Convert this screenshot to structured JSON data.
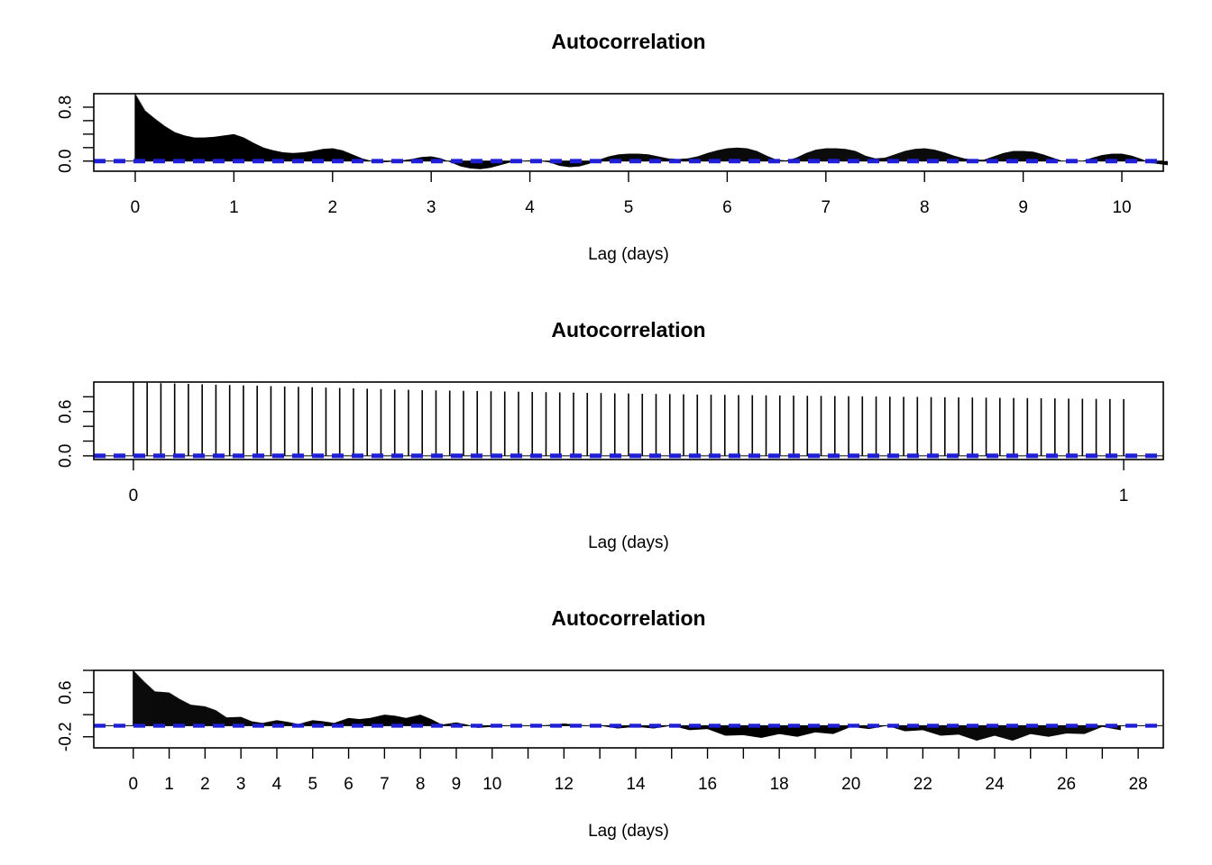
{
  "chart_data": [
    {
      "type": "bar",
      "title": "Autocorrelation",
      "xlabel": "Lag (days)",
      "ylabel": "",
      "xlim": [
        -0.42,
        10.42
      ],
      "ylim": [
        -0.15,
        1.0
      ],
      "x_ticks": [
        0,
        1,
        2,
        3,
        4,
        5,
        6,
        7,
        8,
        9,
        10
      ],
      "y_ticks": [
        0.0,
        0.8
      ],
      "y_minor_ticks": [
        0.2,
        0.4,
        0.6
      ],
      "max_lag": 10.46,
      "confidence_band": 0.015,
      "envelope": [
        [
          0,
          1.0
        ],
        [
          0.02,
          0.95
        ],
        [
          0.1,
          0.75
        ],
        [
          0.2,
          0.63
        ],
        [
          0.3,
          0.52
        ],
        [
          0.4,
          0.43
        ],
        [
          0.5,
          0.38
        ],
        [
          0.6,
          0.35
        ],
        [
          0.7,
          0.35
        ],
        [
          0.8,
          0.36
        ],
        [
          0.9,
          0.38
        ],
        [
          1.0,
          0.4
        ],
        [
          1.1,
          0.35
        ],
        [
          1.2,
          0.27
        ],
        [
          1.3,
          0.2
        ],
        [
          1.4,
          0.16
        ],
        [
          1.5,
          0.13
        ],
        [
          1.6,
          0.12
        ],
        [
          1.7,
          0.13
        ],
        [
          1.8,
          0.15
        ],
        [
          1.9,
          0.18
        ],
        [
          2.0,
          0.19
        ],
        [
          2.1,
          0.16
        ],
        [
          2.2,
          0.1
        ],
        [
          2.3,
          0.04
        ],
        [
          2.4,
          0.0
        ],
        [
          2.5,
          -0.02
        ],
        [
          2.6,
          -0.01
        ],
        [
          2.7,
          0.01
        ],
        [
          2.8,
          0.03
        ],
        [
          2.9,
          0.06
        ],
        [
          3.0,
          0.07
        ],
        [
          3.1,
          0.04
        ],
        [
          3.2,
          -0.02
        ],
        [
          3.3,
          -0.08
        ],
        [
          3.4,
          -0.11
        ],
        [
          3.5,
          -0.12
        ],
        [
          3.6,
          -0.1
        ],
        [
          3.7,
          -0.06
        ],
        [
          3.8,
          -0.02
        ],
        [
          3.9,
          0.0
        ],
        [
          4.0,
          0.01
        ],
        [
          4.1,
          0.0
        ],
        [
          4.2,
          -0.02
        ],
        [
          4.3,
          -0.07
        ],
        [
          4.4,
          -0.09
        ],
        [
          4.5,
          -0.08
        ],
        [
          4.6,
          -0.04
        ],
        [
          4.7,
          0.02
        ],
        [
          4.8,
          0.07
        ],
        [
          4.9,
          0.1
        ],
        [
          5.0,
          0.11
        ],
        [
          5.1,
          0.11
        ],
        [
          5.2,
          0.1
        ],
        [
          5.3,
          0.07
        ],
        [
          5.4,
          0.04
        ],
        [
          5.5,
          0.03
        ],
        [
          5.6,
          0.04
        ],
        [
          5.7,
          0.07
        ],
        [
          5.8,
          0.12
        ],
        [
          5.9,
          0.16
        ],
        [
          6.0,
          0.19
        ],
        [
          6.1,
          0.2
        ],
        [
          6.2,
          0.19
        ],
        [
          6.3,
          0.15
        ],
        [
          6.4,
          0.08
        ],
        [
          6.5,
          0.02
        ],
        [
          6.6,
          0.01
        ],
        [
          6.7,
          0.05
        ],
        [
          6.8,
          0.12
        ],
        [
          6.9,
          0.17
        ],
        [
          7.0,
          0.19
        ],
        [
          7.1,
          0.19
        ],
        [
          7.2,
          0.18
        ],
        [
          7.3,
          0.15
        ],
        [
          7.4,
          0.08
        ],
        [
          7.5,
          0.04
        ],
        [
          7.6,
          0.05
        ],
        [
          7.7,
          0.1
        ],
        [
          7.8,
          0.15
        ],
        [
          7.9,
          0.18
        ],
        [
          8.0,
          0.19
        ],
        [
          8.1,
          0.17
        ],
        [
          8.2,
          0.13
        ],
        [
          8.3,
          0.08
        ],
        [
          8.4,
          0.04
        ],
        [
          8.5,
          0.02
        ],
        [
          8.6,
          0.02
        ],
        [
          8.7,
          0.07
        ],
        [
          8.8,
          0.12
        ],
        [
          8.9,
          0.15
        ],
        [
          9.0,
          0.15
        ],
        [
          9.1,
          0.14
        ],
        [
          9.2,
          0.1
        ],
        [
          9.3,
          0.05
        ],
        [
          9.4,
          0.0
        ],
        [
          9.5,
          -0.01
        ],
        [
          9.6,
          0.0
        ],
        [
          9.7,
          0.05
        ],
        [
          9.8,
          0.09
        ],
        [
          9.9,
          0.11
        ],
        [
          10.0,
          0.11
        ],
        [
          10.1,
          0.08
        ],
        [
          10.2,
          0.03
        ],
        [
          10.3,
          -0.03
        ],
        [
          10.46,
          -0.06
        ]
      ]
    },
    {
      "type": "bar",
      "title": "Autocorrelation",
      "xlabel": "Lag (days)",
      "ylabel": "",
      "xlim": [
        -0.04,
        1.04
      ],
      "ylim": [
        -0.05,
        1.0
      ],
      "x_ticks": [
        0,
        1
      ],
      "y_ticks": [
        0.0,
        0.6
      ],
      "y_minor_ticks": [
        0.2,
        0.4,
        0.8
      ],
      "lag_step": 0.013888889,
      "acf": [
        1.0,
        0.99,
        0.985,
        0.98,
        0.975,
        0.97,
        0.965,
        0.96,
        0.955,
        0.95,
        0.945,
        0.94,
        0.935,
        0.93,
        0.925,
        0.92,
        0.915,
        0.91,
        0.905,
        0.9,
        0.895,
        0.89,
        0.887,
        0.884,
        0.881,
        0.878,
        0.875,
        0.872,
        0.869,
        0.866,
        0.863,
        0.86,
        0.857,
        0.854,
        0.851,
        0.848,
        0.845,
        0.842,
        0.839,
        0.836,
        0.833,
        0.83,
        0.828,
        0.826,
        0.824,
        0.822,
        0.82,
        0.818,
        0.816,
        0.814,
        0.812,
        0.81,
        0.808,
        0.806,
        0.804,
        0.802,
        0.8,
        0.798,
        0.796,
        0.794,
        0.792,
        0.79,
        0.788,
        0.786,
        0.784,
        0.782,
        0.78,
        0.778,
        0.776,
        0.774,
        0.772,
        0.77,
        0.768
      ],
      "confidence_band": 0.015
    },
    {
      "type": "bar",
      "title": "Autocorrelation",
      "xlabel": "Lag (days)",
      "ylabel": "",
      "xlim": [
        -1.1,
        28.7
      ],
      "ylim": [
        -0.4,
        1.0
      ],
      "x_ticks": [
        0,
        1,
        2,
        3,
        4,
        5,
        6,
        7,
        8,
        9,
        10,
        12,
        14,
        16,
        18,
        20,
        22,
        24,
        26,
        28
      ],
      "x_minor_ticks": [
        11,
        13,
        15,
        17,
        19,
        21,
        23,
        25,
        27
      ],
      "y_ticks": [
        -0.2,
        0.6
      ],
      "y_minor_ticks": [
        0.2,
        1.0
      ],
      "max_lag": 27.5,
      "confidence_band": 0.015,
      "envelope": [
        [
          0,
          1.0
        ],
        [
          0.3,
          0.8
        ],
        [
          0.6,
          0.62
        ],
        [
          1.0,
          0.6
        ],
        [
          1.3,
          0.48
        ],
        [
          1.6,
          0.38
        ],
        [
          2.0,
          0.35
        ],
        [
          2.3,
          0.28
        ],
        [
          2.6,
          0.15
        ],
        [
          3.0,
          0.16
        ],
        [
          3.3,
          0.08
        ],
        [
          3.6,
          0.05
        ],
        [
          4.0,
          0.1
        ],
        [
          4.3,
          0.07
        ],
        [
          4.6,
          0.03
        ],
        [
          5.0,
          0.1
        ],
        [
          5.3,
          0.08
        ],
        [
          5.6,
          0.05
        ],
        [
          6.0,
          0.14
        ],
        [
          6.3,
          0.12
        ],
        [
          6.6,
          0.14
        ],
        [
          7.0,
          0.2
        ],
        [
          7.3,
          0.18
        ],
        [
          7.6,
          0.14
        ],
        [
          8.0,
          0.2
        ],
        [
          8.3,
          0.12
        ],
        [
          8.6,
          0.02
        ],
        [
          9.0,
          0.06
        ],
        [
          9.3,
          0.02
        ],
        [
          9.6,
          -0.04
        ],
        [
          10.0,
          -0.02
        ],
        [
          10.5,
          0.0
        ],
        [
          11.0,
          0.0
        ],
        [
          11.5,
          0.01
        ],
        [
          12.0,
          0.04
        ],
        [
          12.5,
          0.01
        ],
        [
          13.0,
          0.0
        ],
        [
          13.5,
          -0.05
        ],
        [
          14.0,
          -0.02
        ],
        [
          14.5,
          -0.05
        ],
        [
          15.0,
          0.0
        ],
        [
          15.5,
          -0.08
        ],
        [
          16.0,
          -0.06
        ],
        [
          16.5,
          -0.18
        ],
        [
          17.0,
          -0.17
        ],
        [
          17.5,
          -0.22
        ],
        [
          18.0,
          -0.15
        ],
        [
          18.5,
          -0.2
        ],
        [
          19.0,
          -0.12
        ],
        [
          19.5,
          -0.15
        ],
        [
          20.0,
          -0.02
        ],
        [
          20.5,
          -0.06
        ],
        [
          21.0,
          0.0
        ],
        [
          21.5,
          -0.1
        ],
        [
          22.0,
          -0.08
        ],
        [
          22.5,
          -0.18
        ],
        [
          23.0,
          -0.16
        ],
        [
          23.5,
          -0.27
        ],
        [
          24.0,
          -0.18
        ],
        [
          24.5,
          -0.27
        ],
        [
          25.0,
          -0.15
        ],
        [
          25.5,
          -0.2
        ],
        [
          26.0,
          -0.14
        ],
        [
          26.5,
          -0.15
        ],
        [
          27.0,
          -0.02
        ],
        [
          27.5,
          -0.08
        ]
      ]
    }
  ],
  "colors": {
    "bars": "#000000",
    "confidence": "#1f1fd6",
    "axis": "#000000"
  }
}
